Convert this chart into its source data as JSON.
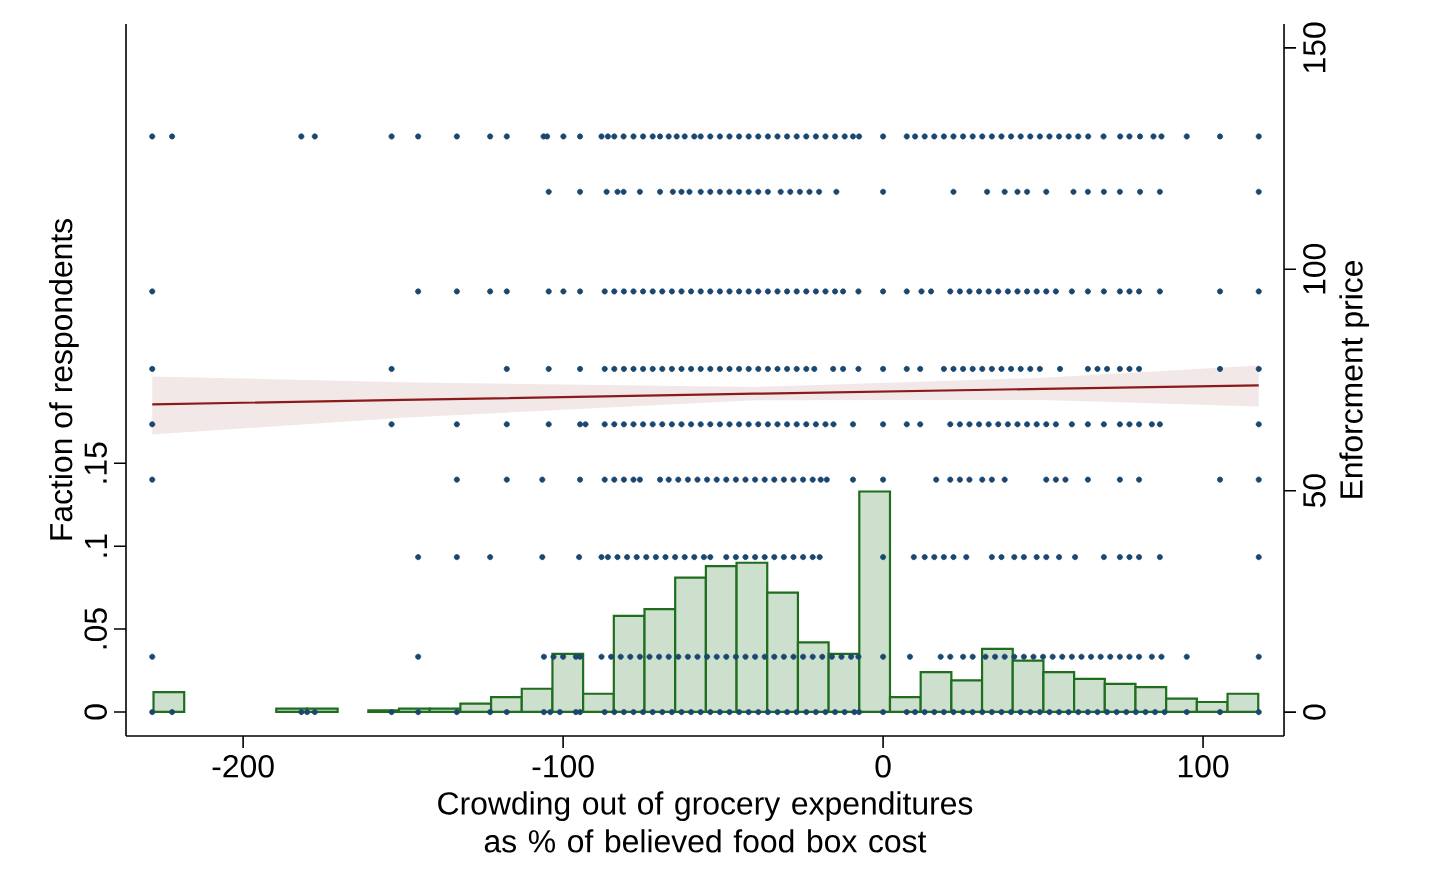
{
  "chart_data": {
    "type": "histogram",
    "xlabel": "Crowding out of grocery expenditures as % of believed food box cost",
    "ylabel": "Faction of respondents",
    "y2label": "Enforcment price",
    "bins": [
      -228,
      -218.41,
      -208.82,
      -199.23,
      -189.64,
      -180.05,
      -170.46,
      -160.87,
      -151.28,
      -141.69,
      -132.1,
      -122.51,
      -112.92,
      -103.33,
      -93.74,
      -84.15,
      -74.56,
      -64.97,
      -55.38,
      -45.79,
      -36.2,
      -26.61,
      -17.02,
      -7.43,
      2.16,
      11.75,
      21.34,
      30.93,
      40.52,
      50.11,
      59.7,
      69.29,
      78.88,
      88.47,
      98.06,
      107.65,
      117.24
    ],
    "values": [
      0.012,
      0,
      0,
      0,
      0.002,
      0.002,
      0,
      0.001,
      0.002,
      0.002,
      0.005,
      0.009,
      0.014,
      0.035,
      0.011,
      0.058,
      0.062,
      0.081,
      0.088,
      0.09,
      0.072,
      0.042,
      0.035,
      0.133,
      0.009,
      0.024,
      0.019,
      0.038,
      0.031,
      0.024,
      0.02,
      0.017,
      0.015,
      0.008,
      0.006,
      0.011
    ],
    "color": "#1e6e1e",
    "xlim": [
      -236.6,
      125.3
    ],
    "ylim": [
      -0.0145,
      0.415
    ],
    "y2lim": [
      -5.4,
      155.4
    ],
    "xticks": [
      -200,
      -100,
      0,
      100
    ],
    "yticks": [
      0,
      {
        "value": 0.05,
        "label": ".05"
      },
      {
        "value": 0.1,
        "label": ".1"
      },
      {
        "value": 0.15,
        "label": ".15"
      }
    ],
    "y2ticks": [
      0,
      50,
      100,
      150
    ],
    "series": [
      {
        "type": "scatter",
        "axis": "y2",
        "marker": "circle",
        "color": "#1a476f",
        "x": [
          -228.4,
          -222.2,
          -181.8,
          -177.6,
          -153.6,
          -145.3,
          -133.2,
          -122.8,
          -117.6,
          -106.1,
          -105,
          -99.9,
          -94.7,
          -88,
          -86,
          -84,
          -81.1,
          -78,
          -75,
          -72,
          -69.7,
          -67,
          -64.5,
          -62,
          -59,
          -57,
          -54,
          -51,
          -48,
          -45,
          -42,
          -39,
          -36,
          -33,
          -30,
          -27,
          -24,
          -21,
          -18,
          -15,
          -12,
          -9.4,
          -7.5,
          0,
          7.4,
          10,
          13,
          16,
          19,
          22,
          25,
          28,
          31,
          34,
          37,
          40,
          43,
          46,
          49,
          52,
          55,
          58,
          61,
          64.1,
          68.9,
          74.1,
          77,
          80.3,
          84.5,
          87,
          94.9,
          105.3,
          117.4
        ],
        "values": [
          130,
          130,
          130,
          130,
          130,
          130,
          130,
          130,
          130,
          130,
          130,
          130,
          130,
          130,
          130,
          130,
          130,
          130,
          130,
          130,
          130,
          130,
          130,
          130,
          130,
          130,
          130,
          130,
          130,
          130,
          130,
          130,
          130,
          130,
          130,
          130,
          130,
          130,
          130,
          130,
          130,
          130,
          130,
          130,
          130,
          130,
          130,
          130,
          130,
          130,
          130,
          130,
          130,
          130,
          130,
          130,
          130,
          130,
          130,
          130,
          130,
          130,
          130,
          130,
          130,
          130,
          130,
          130,
          130,
          130,
          130,
          130,
          130
        ]
      },
      {
        "type": "scatter",
        "axis": "y2",
        "marker": "circle",
        "color": "#1a476f",
        "x": [
          -104.5,
          -94.7,
          -86.4,
          -83,
          -81.1,
          -76,
          -69.7,
          -65.7,
          -63,
          -60.5,
          -57,
          -54,
          -51,
          -48,
          -45,
          -42,
          -39,
          -36,
          -32,
          -29,
          -26,
          -23,
          -20,
          -14.6,
          0,
          22,
          32.5,
          38,
          42,
          45,
          51,
          59.5,
          64,
          69,
          74,
          80.3,
          86.5,
          117.4
        ],
        "values": [
          117.5,
          117.5,
          117.5,
          117.5,
          117.5,
          117.5,
          117.5,
          117.5,
          117.5,
          117.5,
          117.5,
          117.5,
          117.5,
          117.5,
          117.5,
          117.5,
          117.5,
          117.5,
          117.5,
          117.5,
          117.5,
          117.5,
          117.5,
          117.5,
          117.5,
          117.5,
          117.5,
          117.5,
          117.5,
          117.5,
          117.5,
          117.5,
          117.5,
          117.5,
          117.5,
          117.5,
          117.5,
          117.5
        ]
      },
      {
        "type": "scatter",
        "axis": "y2",
        "marker": "circle",
        "color": "#1a476f",
        "x": [
          -228.4,
          -145.3,
          -133.2,
          -122.8,
          -117.6,
          -104.5,
          -99.9,
          -94.7,
          -87,
          -84,
          -81,
          -78,
          -75,
          -72,
          -69,
          -66,
          -63,
          -60,
          -57,
          -54,
          -51,
          -48,
          -45,
          -42,
          -39,
          -36,
          -33,
          -30,
          -27,
          -24,
          -21,
          -18,
          -15,
          -12.5,
          -7.7,
          0,
          7.4,
          12,
          15,
          21,
          24,
          27,
          30,
          33,
          36,
          39,
          42,
          45,
          48,
          51,
          54,
          59,
          64,
          69,
          74,
          77,
          80,
          86.5,
          105.3,
          117.4
        ],
        "values": [
          95,
          95,
          95,
          95,
          95,
          95,
          95,
          95,
          95,
          95,
          95,
          95,
          95,
          95,
          95,
          95,
          95,
          95,
          95,
          95,
          95,
          95,
          95,
          95,
          95,
          95,
          95,
          95,
          95,
          95,
          95,
          95,
          95,
          95,
          95,
          95,
          95,
          95,
          95,
          95,
          95,
          95,
          95,
          95,
          95,
          95,
          95,
          95,
          95,
          95,
          95,
          95,
          95,
          95,
          95,
          95,
          95,
          95,
          95,
          95
        ]
      },
      {
        "type": "scatter",
        "axis": "y2",
        "marker": "circle",
        "color": "#1a476f",
        "x": [
          -228.4,
          -153.6,
          -117.6,
          -104.5,
          -94.7,
          -87,
          -84,
          -81,
          -78,
          -75,
          -72,
          -69,
          -66,
          -63,
          -60,
          -57,
          -54,
          -51,
          -48,
          -45,
          -42,
          -39,
          -36,
          -33,
          -30,
          -27,
          -24,
          -21.5,
          -15.6,
          -12.5,
          -7.7,
          0,
          7.4,
          11.6,
          19,
          22,
          25,
          28,
          31,
          34,
          37,
          40,
          43,
          46,
          49,
          55.3,
          64,
          67,
          70,
          74,
          77,
          80,
          105.3,
          117.4
        ],
        "values": [
          77.5,
          77.5,
          77.5,
          77.5,
          77.5,
          77.5,
          77.5,
          77.5,
          77.5,
          77.5,
          77.5,
          77.5,
          77.5,
          77.5,
          77.5,
          77.5,
          77.5,
          77.5,
          77.5,
          77.5,
          77.5,
          77.5,
          77.5,
          77.5,
          77.5,
          77.5,
          77.5,
          77.5,
          77.5,
          77.5,
          77.5,
          77.5,
          77.5,
          77.5,
          77.5,
          77.5,
          77.5,
          77.5,
          77.5,
          77.5,
          77.5,
          77.5,
          77.5,
          77.5,
          77.5,
          77.5,
          77.5,
          77.5,
          77.5,
          77.5,
          77.5,
          77.5,
          77.5,
          77.5
        ]
      },
      {
        "type": "scatter",
        "axis": "y2",
        "marker": "circle",
        "color": "#1a476f",
        "x": [
          -228.4,
          -153.6,
          -133.2,
          -117.6,
          -104.5,
          -94.7,
          -93,
          -87,
          -84,
          -81,
          -78,
          -75,
          -72,
          -69,
          -66,
          -63,
          -60,
          -57,
          -54,
          -51,
          -48,
          -45,
          -42,
          -39,
          -36,
          -33,
          -30,
          -27,
          -24,
          -21,
          -18,
          -15.5,
          -9.4,
          0,
          7.4,
          11.6,
          21,
          24,
          27,
          30,
          33,
          36,
          39,
          42,
          45,
          48,
          51,
          54,
          59,
          64,
          69,
          74,
          77,
          80,
          84,
          86.5,
          117.4
        ],
        "values": [
          65,
          65,
          65,
          65,
          65,
          65,
          65,
          65,
          65,
          65,
          65,
          65,
          65,
          65,
          65,
          65,
          65,
          65,
          65,
          65,
          65,
          65,
          65,
          65,
          65,
          65,
          65,
          65,
          65,
          65,
          65,
          65,
          65,
          65,
          65,
          65,
          65,
          65,
          65,
          65,
          65,
          65,
          65,
          65,
          65,
          65,
          65,
          65,
          65,
          65,
          65,
          65,
          65,
          65,
          65,
          65,
          65
        ]
      },
      {
        "type": "scatter",
        "axis": "y2",
        "marker": "circle",
        "color": "#1a476f",
        "x": [
          -228.4,
          -133.2,
          -117.6,
          -106.5,
          -94.7,
          -87,
          -84,
          -81,
          -78,
          -76,
          -69.7,
          -67,
          -64,
          -61,
          -58,
          -55,
          -52,
          -49,
          -46,
          -43,
          -40,
          -37,
          -34,
          -31,
          -28,
          -25,
          -22,
          -19.5,
          -17.6,
          -9.4,
          0,
          16.6,
          21,
          24,
          27,
          31,
          34,
          38,
          51,
          54,
          57,
          64,
          74,
          80,
          105.3,
          117.4
        ],
        "values": [
          52.5,
          52.5,
          52.5,
          52.5,
          52.5,
          52.5,
          52.5,
          52.5,
          52.5,
          52.5,
          52.5,
          52.5,
          52.5,
          52.5,
          52.5,
          52.5,
          52.5,
          52.5,
          52.5,
          52.5,
          52.5,
          52.5,
          52.5,
          52.5,
          52.5,
          52.5,
          52.5,
          52.5,
          52.5,
          52.5,
          52.5,
          52.5,
          52.5,
          52.5,
          52.5,
          52.5,
          52.5,
          52.5,
          52.5,
          52.5,
          52.5,
          52.5,
          52.5,
          52.5,
          52.5,
          52.5
        ]
      },
      {
        "type": "scatter",
        "axis": "y2",
        "marker": "circle",
        "color": "#1a476f",
        "x": [
          -145.3,
          -133.2,
          -122.8,
          -106.5,
          -95,
          -88,
          -86,
          -83,
          -80,
          -77,
          -74,
          -71,
          -68,
          -65,
          -62,
          -59,
          -56,
          -54,
          -49,
          -46,
          -43,
          -40,
          -37,
          -34,
          -31,
          -28,
          -25,
          -22,
          -19.8,
          0,
          9.6,
          13,
          16,
          19,
          22,
          26,
          34,
          37,
          41,
          44,
          48,
          51,
          55,
          60,
          69,
          74,
          77,
          80,
          86.5,
          117.4
        ],
        "values": [
          35,
          35,
          35,
          35,
          35,
          35,
          35,
          35,
          35,
          35,
          35,
          35,
          35,
          35,
          35,
          35,
          35,
          35,
          35,
          35,
          35,
          35,
          35,
          35,
          35,
          35,
          35,
          35,
          35,
          35,
          35,
          35,
          35,
          35,
          35,
          35,
          35,
          35,
          35,
          35,
          35,
          35,
          35,
          35,
          35,
          35,
          35,
          35,
          35,
          35
        ]
      },
      {
        "type": "scatter",
        "axis": "y2",
        "marker": "circle",
        "color": "#1a476f",
        "x": [
          -228.4,
          -145.3,
          -106,
          -103,
          -100,
          -96,
          -94.7,
          -88,
          -85,
          -82,
          -79,
          -76,
          -73,
          -70,
          -67,
          -64,
          -61,
          -58,
          -55,
          -52,
          -49,
          -46,
          -43,
          -40,
          -37,
          -34,
          -31,
          -28,
          -25,
          -22,
          -19,
          -16,
          -13,
          -10,
          -7.7,
          0,
          8.4,
          18,
          21,
          25,
          28,
          32,
          35,
          38,
          41,
          44,
          47,
          50,
          53,
          56,
          59,
          62,
          65,
          68,
          71,
          74,
          77,
          80,
          84,
          87,
          94.9,
          117.4
        ],
        "values": [
          12.5,
          12.5,
          12.5,
          12.5,
          12.5,
          12.5,
          12.5,
          12.5,
          12.5,
          12.5,
          12.5,
          12.5,
          12.5,
          12.5,
          12.5,
          12.5,
          12.5,
          12.5,
          12.5,
          12.5,
          12.5,
          12.5,
          12.5,
          12.5,
          12.5,
          12.5,
          12.5,
          12.5,
          12.5,
          12.5,
          12.5,
          12.5,
          12.5,
          12.5,
          12.5,
          12.5,
          12.5,
          12.5,
          12.5,
          12.5,
          12.5,
          12.5,
          12.5,
          12.5,
          12.5,
          12.5,
          12.5,
          12.5,
          12.5,
          12.5,
          12.5,
          12.5,
          12.5,
          12.5,
          12.5,
          12.5,
          12.5,
          12.5,
          12.5,
          12.5,
          12.5,
          12.5
        ]
      },
      {
        "type": "scatter",
        "axis": "y2",
        "marker": "circle",
        "color": "#1a476f",
        "x": [
          -228.4,
          -222.2,
          -181.8,
          -180,
          -177.6,
          -153.6,
          -145.3,
          -133.2,
          -122.8,
          -117.6,
          -106,
          -104,
          -101,
          -96,
          -94.7,
          -87,
          -84,
          -81,
          -78,
          -75,
          -72,
          -69,
          -66,
          -63,
          -60,
          -57,
          -54,
          -51,
          -48,
          -45,
          -42,
          -39,
          -36,
          -33,
          -30,
          -27,
          -24,
          -21,
          -18,
          -15,
          -12,
          -9,
          -7.5,
          0,
          7.4,
          10,
          13,
          16,
          19,
          22,
          25,
          28,
          31,
          34,
          37,
          40,
          43,
          46,
          49,
          52,
          55,
          58,
          61,
          64,
          67,
          70,
          73,
          76,
          79,
          82,
          85,
          88,
          94.9,
          105.3,
          117.4
        ],
        "values": [
          0,
          0,
          0,
          0,
          0,
          0,
          0,
          0,
          0,
          0,
          0,
          0,
          0,
          0,
          0,
          0,
          0,
          0,
          0,
          0,
          0,
          0,
          0,
          0,
          0,
          0,
          0,
          0,
          0,
          0,
          0,
          0,
          0,
          0,
          0,
          0,
          0,
          0,
          0,
          0,
          0,
          0,
          0,
          0,
          0,
          0,
          0,
          0,
          0,
          0,
          0,
          0,
          0,
          0,
          0,
          0,
          0,
          0,
          0,
          0,
          0,
          0,
          0,
          0,
          0,
          0,
          0,
          0,
          0,
          0,
          0,
          0,
          0,
          0,
          0
        ]
      },
      {
        "type": "line",
        "axis": "y2",
        "color": "#8b1a1a",
        "x": [
          -228.4,
          -150,
          -40,
          50,
          117.4
        ],
        "values": [
          69.5,
          70.5,
          71.9,
          73,
          73.8
        ],
        "lower": [
          62.7,
          66.5,
          70.4,
          70.5,
          69
        ],
        "upper": [
          75.8,
          74.5,
          73.4,
          75.5,
          78.3
        ]
      }
    ]
  }
}
